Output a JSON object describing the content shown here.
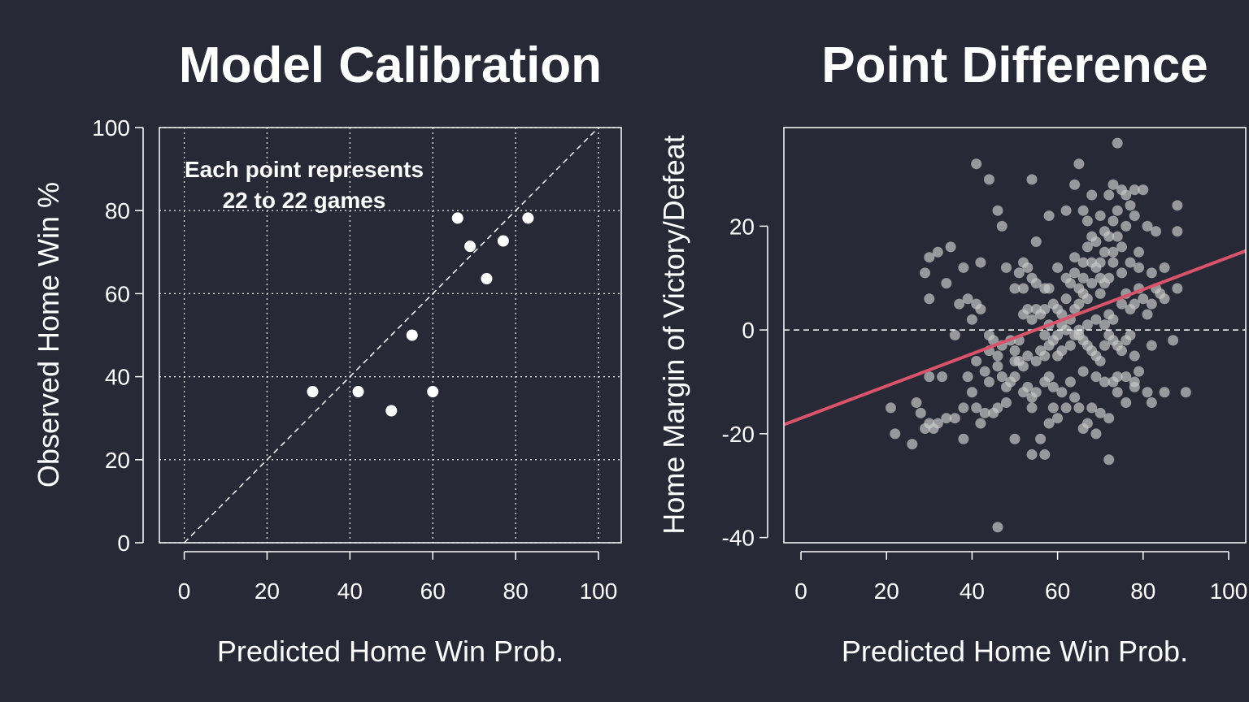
{
  "colors": {
    "background": "#272a36",
    "foreground": "#ffffff",
    "fit_line": "#d9536a",
    "scatter_point": "#c8c8c8"
  },
  "chart_data": [
    {
      "type": "scatter",
      "title": "Model Calibration",
      "xlabel": "Predicted Home Win Prob.",
      "ylabel": "Observed Home Win %",
      "xlim": [
        -6,
        105.5
      ],
      "ylim": [
        0,
        100
      ],
      "xticks": [
        "0",
        "20",
        "40",
        "60",
        "80",
        "100"
      ],
      "yticks": [
        "0",
        "20",
        "40",
        "60",
        "80",
        "100"
      ],
      "grid": true,
      "reference_line": "y = x (dashed)",
      "annotation": [
        "Each point represents",
        "22 to 22 games"
      ],
      "points": [
        {
          "x": 31,
          "y": 36.4
        },
        {
          "x": 42,
          "y": 36.4
        },
        {
          "x": 50,
          "y": 31.8
        },
        {
          "x": 55,
          "y": 50.0
        },
        {
          "x": 60,
          "y": 36.4
        },
        {
          "x": 66,
          "y": 78.2
        },
        {
          "x": 69,
          "y": 71.4
        },
        {
          "x": 73,
          "y": 63.6
        },
        {
          "x": 77,
          "y": 72.7
        },
        {
          "x": 83,
          "y": 78.2
        }
      ]
    },
    {
      "type": "scatter",
      "title": "Point Difference",
      "xlabel": "Predicted Home Win Prob.",
      "ylabel": "Home Margin of Victory/Defeat",
      "xlim": [
        -4,
        104
      ],
      "ylim": [
        -41,
        39
      ],
      "xticks": [
        "0",
        "20",
        "40",
        "60",
        "80",
        "100"
      ],
      "yticks": [
        "-40",
        "-20",
        "0",
        "20"
      ],
      "grid": false,
      "reference_line": "y = 0 (dashed)",
      "fit_line": {
        "intercept": -17,
        "slope": 0.31
      },
      "points": [
        {
          "x": 41,
          "y": 32
        },
        {
          "x": 44,
          "y": 29
        },
        {
          "x": 54,
          "y": 29
        },
        {
          "x": 65,
          "y": 32
        },
        {
          "x": 74,
          "y": 36
        },
        {
          "x": 46,
          "y": 23
        },
        {
          "x": 47,
          "y": 20
        },
        {
          "x": 35,
          "y": 16
        },
        {
          "x": 32,
          "y": 15
        },
        {
          "x": 30,
          "y": 14
        },
        {
          "x": 29,
          "y": 11
        },
        {
          "x": 34,
          "y": 9
        },
        {
          "x": 38,
          "y": 12
        },
        {
          "x": 42,
          "y": 13
        },
        {
          "x": 39,
          "y": 6
        },
        {
          "x": 41,
          "y": 5
        },
        {
          "x": 42,
          "y": 4
        },
        {
          "x": 37,
          "y": 5
        },
        {
          "x": 30,
          "y": 6
        },
        {
          "x": 40,
          "y": 2
        },
        {
          "x": 48,
          "y": 12
        },
        {
          "x": 51,
          "y": 11
        },
        {
          "x": 52,
          "y": 13
        },
        {
          "x": 53,
          "y": 12
        },
        {
          "x": 54,
          "y": 10
        },
        {
          "x": 50,
          "y": 8
        },
        {
          "x": 52,
          "y": 8
        },
        {
          "x": 55,
          "y": 9
        },
        {
          "x": 57,
          "y": 8
        },
        {
          "x": 58,
          "y": 8
        },
        {
          "x": 55,
          "y": 17
        },
        {
          "x": 58,
          "y": 22
        },
        {
          "x": 62,
          "y": 23
        },
        {
          "x": 64,
          "y": 14
        },
        {
          "x": 66,
          "y": 13
        },
        {
          "x": 67,
          "y": 21
        },
        {
          "x": 68,
          "y": 26
        },
        {
          "x": 69,
          "y": 12
        },
        {
          "x": 70,
          "y": 13
        },
        {
          "x": 72,
          "y": 18
        },
        {
          "x": 73,
          "y": 28
        },
        {
          "x": 75,
          "y": 27
        },
        {
          "x": 76,
          "y": 26
        },
        {
          "x": 77,
          "y": 24
        },
        {
          "x": 78,
          "y": 27
        },
        {
          "x": 80,
          "y": 27
        },
        {
          "x": 81,
          "y": 20
        },
        {
          "x": 83,
          "y": 19
        },
        {
          "x": 85,
          "y": 12
        },
        {
          "x": 88,
          "y": 24
        },
        {
          "x": 88,
          "y": 19
        },
        {
          "x": 88,
          "y": 8
        },
        {
          "x": 82,
          "y": 11
        },
        {
          "x": 79,
          "y": 15
        },
        {
          "x": 75,
          "y": 16
        },
        {
          "x": 74,
          "y": 18
        },
        {
          "x": 73,
          "y": 15
        },
        {
          "x": 72,
          "y": 10
        },
        {
          "x": 71,
          "y": 9
        },
        {
          "x": 70,
          "y": 7
        },
        {
          "x": 68,
          "y": 9
        },
        {
          "x": 67,
          "y": 6
        },
        {
          "x": 66,
          "y": 7
        },
        {
          "x": 65,
          "y": 5
        },
        {
          "x": 64,
          "y": 4
        },
        {
          "x": 62,
          "y": 6
        },
        {
          "x": 61,
          "y": 3
        },
        {
          "x": 60,
          "y": 4
        },
        {
          "x": 59,
          "y": 5
        },
        {
          "x": 57,
          "y": 4
        },
        {
          "x": 56,
          "y": 3
        },
        {
          "x": 55,
          "y": 4
        },
        {
          "x": 54,
          "y": 2
        },
        {
          "x": 53,
          "y": 4
        },
        {
          "x": 52,
          "y": 3
        },
        {
          "x": 76,
          "y": 7
        },
        {
          "x": 77,
          "y": 4
        },
        {
          "x": 78,
          "y": 5
        },
        {
          "x": 79,
          "y": 8
        },
        {
          "x": 80,
          "y": 6
        },
        {
          "x": 81,
          "y": 3
        },
        {
          "x": 82,
          "y": 5
        },
        {
          "x": 83,
          "y": 8
        },
        {
          "x": 84,
          "y": 7
        },
        {
          "x": 85,
          "y": 6
        },
        {
          "x": 44,
          "y": -1
        },
        {
          "x": 47,
          "y": -3
        },
        {
          "x": 49,
          "y": -2
        },
        {
          "x": 50,
          "y": -4
        },
        {
          "x": 51,
          "y": -6
        },
        {
          "x": 52,
          "y": -7
        },
        {
          "x": 53,
          "y": -5
        },
        {
          "x": 55,
          "y": -6
        },
        {
          "x": 56,
          "y": -4
        },
        {
          "x": 57,
          "y": -5
        },
        {
          "x": 58,
          "y": -3
        },
        {
          "x": 59,
          "y": -2
        },
        {
          "x": 60,
          "y": -5
        },
        {
          "x": 61,
          "y": -4
        },
        {
          "x": 63,
          "y": -3
        },
        {
          "x": 65,
          "y": -1
        },
        {
          "x": 66,
          "y": -2
        },
        {
          "x": 67,
          "y": -3
        },
        {
          "x": 68,
          "y": -4
        },
        {
          "x": 69,
          "y": -5
        },
        {
          "x": 70,
          "y": -6
        },
        {
          "x": 71,
          "y": -3
        },
        {
          "x": 72,
          "y": -1
        },
        {
          "x": 73,
          "y": -2
        },
        {
          "x": 74,
          "y": -3
        },
        {
          "x": 75,
          "y": -4
        },
        {
          "x": 76,
          "y": -2
        },
        {
          "x": 77,
          "y": -1
        },
        {
          "x": 78,
          "y": -5
        },
        {
          "x": 79,
          "y": -8
        },
        {
          "x": 41,
          "y": -6
        },
        {
          "x": 43,
          "y": -8
        },
        {
          "x": 44,
          "y": -4
        },
        {
          "x": 46,
          "y": -7
        },
        {
          "x": 47,
          "y": -9
        },
        {
          "x": 48,
          "y": -11
        },
        {
          "x": 49,
          "y": -10
        },
        {
          "x": 50,
          "y": -9
        },
        {
          "x": 52,
          "y": -12
        },
        {
          "x": 53,
          "y": -11
        },
        {
          "x": 54,
          "y": -13
        },
        {
          "x": 55,
          "y": -12
        },
        {
          "x": 57,
          "y": -10
        },
        {
          "x": 58,
          "y": -9
        },
        {
          "x": 59,
          "y": -11
        },
        {
          "x": 39,
          "y": -9
        },
        {
          "x": 40,
          "y": -12
        },
        {
          "x": 41,
          "y": -15
        },
        {
          "x": 42,
          "y": -18
        },
        {
          "x": 43,
          "y": -16
        },
        {
          "x": 45,
          "y": -16
        },
        {
          "x": 46,
          "y": -15
        },
        {
          "x": 48,
          "y": -14
        },
        {
          "x": 38,
          "y": -15
        },
        {
          "x": 36,
          "y": -17
        },
        {
          "x": 34,
          "y": -17
        },
        {
          "x": 32,
          "y": -18
        },
        {
          "x": 31,
          "y": -19
        },
        {
          "x": 30,
          "y": -18
        },
        {
          "x": 29,
          "y": -19
        },
        {
          "x": 28,
          "y": -16
        },
        {
          "x": 27,
          "y": -14
        },
        {
          "x": 26,
          "y": -22
        },
        {
          "x": 22,
          "y": -20
        },
        {
          "x": 21,
          "y": -15
        },
        {
          "x": 30,
          "y": -9
        },
        {
          "x": 33,
          "y": -9
        },
        {
          "x": 38,
          "y": -21
        },
        {
          "x": 44,
          "y": -10
        },
        {
          "x": 50,
          "y": -21
        },
        {
          "x": 54,
          "y": -15
        },
        {
          "x": 56,
          "y": -21
        },
        {
          "x": 57,
          "y": -24
        },
        {
          "x": 54,
          "y": -24
        },
        {
          "x": 58,
          "y": -18
        },
        {
          "x": 60,
          "y": -17
        },
        {
          "x": 62,
          "y": -15
        },
        {
          "x": 64,
          "y": -13
        },
        {
          "x": 65,
          "y": -15
        },
        {
          "x": 66,
          "y": -19
        },
        {
          "x": 67,
          "y": -18
        },
        {
          "x": 68,
          "y": -15
        },
        {
          "x": 69,
          "y": -20
        },
        {
          "x": 70,
          "y": -16
        },
        {
          "x": 72,
          "y": -17
        },
        {
          "x": 72,
          "y": -25
        },
        {
          "x": 74,
          "y": -12
        },
        {
          "x": 76,
          "y": -14
        },
        {
          "x": 78,
          "y": -11
        },
        {
          "x": 81,
          "y": -12
        },
        {
          "x": 82,
          "y": -14
        },
        {
          "x": 85,
          "y": -12
        },
        {
          "x": 87,
          "y": -2
        },
        {
          "x": 90,
          "y": -12
        },
        {
          "x": 82,
          "y": -3
        },
        {
          "x": 46,
          "y": -38
        },
        {
          "x": 36,
          "y": -1
        },
        {
          "x": 60,
          "y": -1
        },
        {
          "x": 62,
          "y": 0
        },
        {
          "x": 64,
          "y": -1
        },
        {
          "x": 71,
          "y": -10
        },
        {
          "x": 73,
          "y": -10
        },
        {
          "x": 74,
          "y": -9
        },
        {
          "x": 76,
          "y": -9
        },
        {
          "x": 78,
          "y": -10
        },
        {
          "x": 69,
          "y": -9
        },
        {
          "x": 66,
          "y": -8
        },
        {
          "x": 63,
          "y": -10
        },
        {
          "x": 61,
          "y": -12
        },
        {
          "x": 59,
          "y": -15
        },
        {
          "x": 50,
          "y": -6
        },
        {
          "x": 51,
          "y": -2
        },
        {
          "x": 46,
          "y": -5
        },
        {
          "x": 45,
          "y": -2
        },
        {
          "x": 57,
          "y": -1
        },
        {
          "x": 58,
          "y": 1
        },
        {
          "x": 61,
          "y": 1
        },
        {
          "x": 63,
          "y": 2
        },
        {
          "x": 65,
          "y": 0
        },
        {
          "x": 67,
          "y": 1
        },
        {
          "x": 69,
          "y": 2
        },
        {
          "x": 71,
          "y": 1
        },
        {
          "x": 72,
          "y": 3
        },
        {
          "x": 73,
          "y": 2
        },
        {
          "x": 75,
          "y": 5
        },
        {
          "x": 62,
          "y": 10
        },
        {
          "x": 64,
          "y": 11
        },
        {
          "x": 66,
          "y": 10
        },
        {
          "x": 68,
          "y": 13
        },
        {
          "x": 70,
          "y": 10
        },
        {
          "x": 71,
          "y": 15
        },
        {
          "x": 73,
          "y": 13
        },
        {
          "x": 75,
          "y": 11
        },
        {
          "x": 77,
          "y": 13
        },
        {
          "x": 79,
          "y": 12
        },
        {
          "x": 60,
          "y": 12
        },
        {
          "x": 63,
          "y": 9
        },
        {
          "x": 65,
          "y": 8
        },
        {
          "x": 67,
          "y": 16
        },
        {
          "x": 69,
          "y": 17
        },
        {
          "x": 71,
          "y": 19
        },
        {
          "x": 73,
          "y": 21
        },
        {
          "x": 74,
          "y": 23
        },
        {
          "x": 76,
          "y": 20
        },
        {
          "x": 78,
          "y": 22
        },
        {
          "x": 66,
          "y": 23
        },
        {
          "x": 64,
          "y": 28
        },
        {
          "x": 68,
          "y": 18
        },
        {
          "x": 70,
          "y": 22
        },
        {
          "x": 72,
          "y": 26
        }
      ]
    }
  ]
}
